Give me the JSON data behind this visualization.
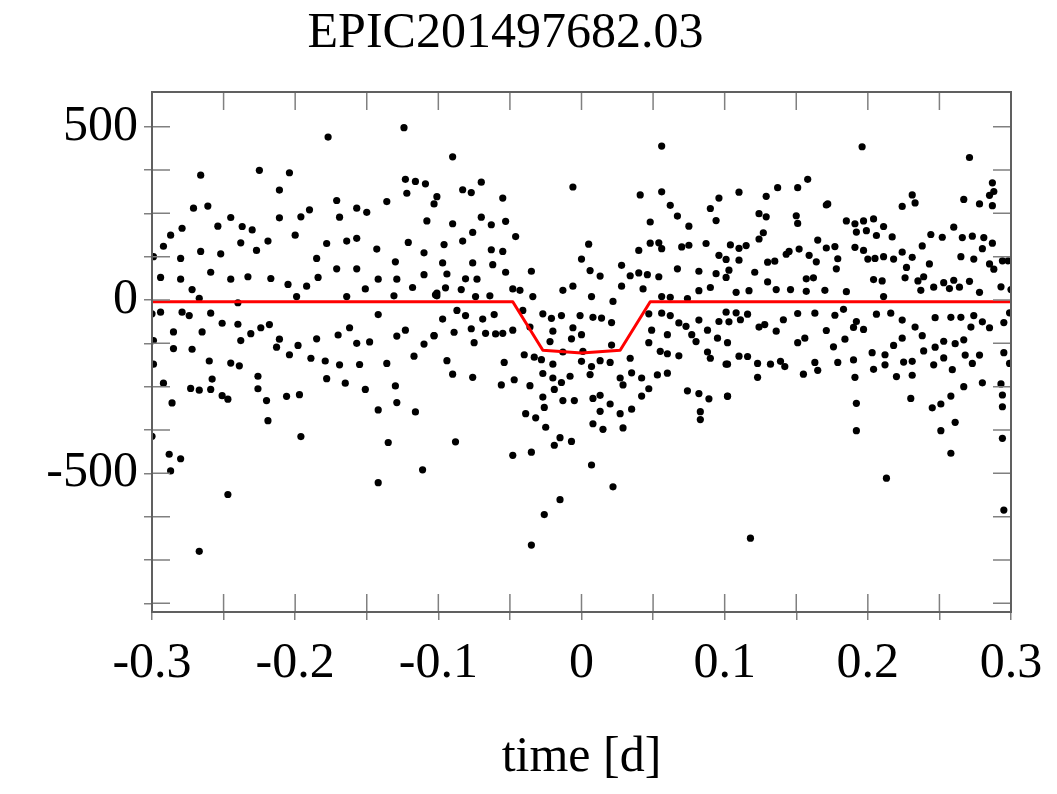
{
  "chart_data": {
    "type": "scatter",
    "title": "EPIC201497682.03",
    "xlabel": "time [d]",
    "xlim": [
      -0.3,
      0.3
    ],
    "ylim": [
      -900,
      600
    ],
    "xticks": [
      -0.3,
      {
        "value": -0.25,
        "label": null
      },
      -0.2,
      {
        "value": -0.15,
        "label": null
      },
      -0.1,
      {
        "value": -0.05,
        "label": null
      },
      0,
      {
        "value": 0.05,
        "label": null
      },
      0.1,
      {
        "value": 0.15,
        "label": null
      },
      0.2,
      {
        "value": 0.25,
        "label": null
      },
      0.3
    ],
    "yticks": [
      {
        "value": -875,
        "label": null
      },
      {
        "value": -750,
        "label": null
      },
      {
        "value": -625,
        "label": null
      },
      -500,
      {
        "value": -375,
        "label": null
      },
      {
        "value": -250,
        "label": null
      },
      {
        "value": -125,
        "label": null
      },
      0,
      {
        "value": 125,
        "label": null
      },
      {
        "value": 250,
        "label": null
      },
      {
        "value": 375,
        "label": null
      },
      500
    ],
    "series": [
      {
        "type": "scatter",
        "color": "#000000",
        "marker": "circle",
        "x": [
          -0.3,
          -0.267,
          -0.124,
          -0.177,
          -0.266,
          -0.225,
          -0.204,
          -0.211,
          -0.299,
          -0.288,
          -0.287,
          -0.28,
          -0.247,
          -0.196,
          -0.142,
          -0.111,
          -0.135,
          -0.142,
          -0.116,
          -0.219,
          -0.292,
          -0.286,
          -0.299,
          -0.299,
          -0.3,
          -0.294,
          -0.292,
          -0.287,
          -0.279,
          -0.271,
          -0.261,
          -0.272,
          -0.28,
          -0.285,
          -0.273,
          -0.267,
          -0.259,
          -0.258,
          -0.26,
          -0.251,
          -0.247,
          -0.245,
          -0.239,
          -0.226,
          -0.22,
          -0.226,
          -0.206,
          -0.197,
          -0.178,
          -0.165,
          -0.151,
          -0.13,
          -0.129,
          -0.254,
          -0.245,
          -0.237,
          -0.23,
          -0.211,
          -0.196,
          -0.19,
          -0.171,
          -0.169,
          -0.157,
          -0.15,
          -0.136,
          -0.123,
          -0.116,
          -0.109,
          -0.122,
          -0.103,
          -0.252,
          -0.238,
          -0.219,
          -0.2,
          -0.178,
          -0.164,
          -0.157,
          -0.143,
          -0.121,
          -0.11,
          -0.266,
          -0.28,
          -0.259,
          -0.245,
          -0.233,
          -0.217,
          -0.205,
          -0.192,
          -0.184,
          -0.171,
          -0.157,
          -0.151,
          -0.142,
          -0.129,
          -0.118,
          -0.11,
          -0.101,
          -0.294,
          -0.279,
          -0.274,
          -0.259,
          -0.251,
          -0.24,
          -0.238,
          -0.231,
          -0.224,
          -0.218,
          -0.211,
          -0.213,
          -0.204,
          -0.198,
          -0.189,
          -0.185,
          -0.179,
          -0.169,
          -0.17,
          -0.162,
          -0.157,
          -0.155,
          -0.148,
          -0.142,
          -0.136,
          -0.129,
          -0.123,
          -0.117,
          -0.11,
          -0.103,
          -0.272,
          -0.265,
          -0.285,
          -0.227,
          -0.185,
          -0.13,
          -0.108,
          -0.267,
          -0.24,
          -0.199,
          -0.164,
          -0.131,
          -0.101,
          -0.09,
          -0.07,
          -0.083,
          -0.101,
          -0.055,
          -0.077,
          -0.07,
          -0.053,
          -0.063,
          -0.046,
          -0.096,
          -0.083,
          -0.076,
          -0.09,
          -0.063,
          -0.055,
          -0.097,
          -0.062,
          -0.053,
          -0.076,
          -0.081,
          -0.073,
          -0.094,
          -0.102,
          -0.095,
          -0.084,
          -0.074,
          -0.064,
          -0.048,
          -0.043,
          -0.087,
          -0.081,
          -0.069,
          -0.061,
          -0.097,
          -0.103,
          -0.089,
          -0.077,
          -0.075,
          -0.067,
          -0.06,
          -0.055,
          -0.048,
          -0.094,
          -0.09,
          -0.076,
          -0.054,
          -0.056,
          -0.047,
          -0.088,
          -0.048,
          -0.035,
          -0.039,
          -0.032,
          -0.025,
          -0.019,
          -0.015,
          -0.007,
          -0.026,
          -0.015,
          -0.035,
          0.007,
          0.022,
          0.008,
          0.015,
          0.029,
          0.02,
          0.027,
          0.013,
          0.008,
          0.035,
          -0.006,
          0.005,
          0.0,
          -0.035,
          0.006,
          0.013,
          0.028,
          -0.006,
          -0.013,
          0.007,
          0.022,
          -0.041,
          -0.034,
          -0.027,
          -0.021,
          -0.014,
          -0.001,
          0.008,
          0.014,
          0.021,
          -0.036,
          -0.02,
          -0.006,
          0.0,
          -0.022,
          -0.007,
          0.021,
          -0.04,
          -0.033,
          -0.028,
          -0.013,
          0.001,
          0.013,
          0.02,
          -0.02,
          0.007,
          0.0,
          0.034,
          -0.027,
          -0.02,
          -0.014,
          -0.008,
          0.006,
          0.027,
          0.029,
          0.035,
          0.042,
          -0.036,
          -0.027,
          -0.019,
          -0.013,
          -0.005,
          0.013,
          -0.026,
          0.047,
          0.042,
          0.056,
          0.041,
          0.056,
          0.062,
          0.067,
          0.075,
          0.048,
          0.09,
          0.096,
          0.094,
          0.04,
          0.048,
          0.056,
          0.054,
          0.07,
          0.075,
          0.087,
          0.096,
          0.034,
          0.04,
          0.046,
          0.054,
          0.067,
          0.082,
          0.094,
          0.101,
          0.028,
          0.043,
          0.056,
          0.062,
          0.074,
          0.082,
          0.09,
          0.047,
          0.056,
          0.062,
          0.068,
          0.082,
          0.096,
          0.049,
          0.06,
          0.073,
          0.077,
          0.088,
          0.095,
          0.047,
          0.055,
          0.06,
          0.068,
          0.08,
          0.088,
          0.09,
          0.102,
          0.053,
          0.06,
          0.074,
          0.082,
          0.089,
          0.102,
          0.083,
          0.083,
          0.102,
          0.196,
          0.271,
          0.158,
          0.151,
          0.137,
          0.11,
          0.129,
          0.287,
          0.288,
          0.285,
          0.231,
          0.233,
          0.224,
          0.267,
          0.278,
          0.287,
          0.171,
          0.172,
          0.124,
          0.129,
          0.15,
          0.151,
          0.185,
          0.191,
          0.197,
          0.204,
          0.211,
          0.26,
          0.124,
          0.127,
          0.165,
          0.192,
          0.199,
          0.206,
          0.217,
          0.244,
          0.252,
          0.266,
          0.273,
          0.281,
          0.287,
          0.104,
          0.115,
          0.11,
          0.145,
          0.152,
          0.159,
          0.171,
          0.177,
          0.191,
          0.197,
          0.211,
          0.224,
          0.231,
          0.238,
          0.265,
          0.274,
          0.28,
          0.294,
          0.298,
          0.101,
          0.11,
          0.13,
          0.135,
          0.143,
          0.164,
          0.179,
          0.2,
          0.205,
          0.218,
          0.227,
          0.243,
          0.285,
          0.288,
          0.103,
          0.121,
          0.13,
          0.157,
          0.162,
          0.178,
          0.204,
          0.21,
          0.226,
          0.235,
          0.239,
          0.253,
          0.26,
          0.271,
          0.293,
          0.3,
          0.108,
          0.117,
          0.136,
          0.146,
          0.157,
          0.17,
          0.185,
          0.211,
          0.237,
          0.246,
          0.257,
          0.264,
          0.278,
          0.101,
          0.108,
          0.116,
          0.103,
          0.111,
          0.124,
          0.128,
          0.136,
          0.141,
          0.151,
          0.163,
          0.171,
          0.177,
          0.183,
          0.192,
          0.19,
          0.197,
          0.206,
          0.216,
          0.224,
          0.233,
          0.247,
          0.258,
          0.265,
          0.272,
          0.274,
          0.28,
          0.285,
          0.295,
          0.299,
          0.116,
          0.101,
          0.11,
          0.123,
          0.132,
          0.139,
          0.142,
          0.151,
          0.156,
          0.155,
          0.163,
          0.165,
          0.176,
          0.179,
          0.184,
          0.19,
          0.191,
          0.204,
          0.203,
          0.212,
          0.212,
          0.218,
          0.22,
          0.224,
          0.225,
          0.231,
          0.231,
          0.238,
          0.239,
          0.246,
          0.247,
          0.253,
          0.253,
          0.259,
          0.261,
          0.267,
          0.268,
          0.273,
          0.278,
          0.295,
          0.299,
          0.102,
          0.123,
          0.192,
          0.192,
          0.23,
          0.245,
          0.251,
          0.258,
          0.261,
          0.251,
          0.258,
          0.267,
          0.28,
          0.293,
          0.294,
          0.294,
          0.294,
          0.213,
          0.295,
          0.118
        ],
        "values": [
          -393,
          -725,
          497,
          470,
          360,
          374,
          367,
          317,
          125,
          -445,
          -493,
          -458,
          -561,
          -394,
          -527,
          -490,
          -411,
          -317,
          -323,
          -348,
          -240,
          -297,
          -185,
          -117,
          -40,
          65,
          155,
          187,
          207,
          265,
          271,
          30,
          60,
          -140,
          -255,
          -260,
          -258,
          -228,
          -176,
          -276,
          -286,
          -182,
          -190,
          -220,
          -290,
          -256,
          -278,
          -273,
          -227,
          -240,
          -258,
          -248,
          -296,
          213,
          238,
          212,
          202,
          237,
          240,
          260,
          287,
          239,
          265,
          253,
          284,
          348,
          342,
          335,
          308,
          277,
          133,
          165,
          170,
          187,
          163,
          170,
          178,
          147,
          166,
          136,
          140,
          120,
          80,
          60,
          67,
          62,
          45,
          40,
          65,
          90,
          90,
          32,
          60,
          60,
          36,
          73,
          20,
          -35,
          -35,
          -45,
          -38,
          -67,
          -70,
          -117,
          -97,
          -80,
          -71,
          -113,
          -136,
          -158,
          -131,
          -168,
          -112,
          -176,
          -187,
          -101,
          -80,
          -125,
          -186,
          -121,
          -42,
          -183,
          -104,
          -87,
          -162,
          -127,
          -103,
          -142,
          -92,
          -92,
          143,
          120,
          110,
          228,
          5,
          -8,
          10,
          10,
          12,
          12,
          413,
          340,
          318,
          298,
          294,
          310,
          239,
          227,
          217,
          183,
          160,
          170,
          195,
          220,
          145,
          140,
          107,
          102,
          80,
          107,
          61,
          60,
          75,
          15,
          35,
          30,
          10,
          12,
          32,
          28,
          -30,
          -45,
          -55,
          -42,
          -55,
          -103,
          -93,
          -83,
          -123,
          -96,
          -98,
          -96,
          -87,
          -175,
          -214,
          -223,
          -180,
          -245,
          -230,
          -409,
          -448,
          -439,
          -328,
          -340,
          -367,
          -419,
          -397,
          -408,
          -619,
          -576,
          -707,
          -476,
          -539,
          -357,
          -373,
          -369,
          -300,
          -328,
          -321,
          -284,
          -315,
          326,
          161,
          118,
          83,
          85,
          69,
          100,
          40,
          28,
          10,
          -4,
          -30,
          10,
          -40,
          -53,
          -45,
          -45,
          -50,
          -52,
          -65,
          -78,
          -90,
          -80,
          -100,
          -120,
          -112,
          -130,
          -158,
          -165,
          -172,
          -150,
          -148,
          -175,
          -180,
          -185,
          -192,
          -177,
          -168,
          -212,
          -225,
          -238,
          -220,
          -215,
          -225,
          -245,
          -210,
          -225,
          -247,
          -280,
          -258,
          -290,
          -290,
          -275,
          -310,
          -256,
          -277,
          444,
          303,
          312,
          273,
          242,
          213,
          225,
          264,
          294,
          229,
          143,
          164,
          148,
          165,
          153,
          158,
          163,
          129,
          70,
          78,
          73,
          67,
          90,
          83,
          76,
          65,
          40,
          32,
          10,
          8,
          4,
          27,
          36,
          -40,
          -38,
          -45,
          -66,
          -58,
          -62,
          -87,
          -100,
          -76,
          -100,
          -87,
          -110,
          -123,
          -148,
          -155,
          -161,
          -120,
          -150,
          -168,
          -185,
          -216,
          -211,
          -262,
          -270,
          -285,
          -277,
          -322,
          -345,
          -123,
          442,
          411,
          348,
          324,
          324,
          311,
          299,
          338,
          313,
          302,
          303,
          280,
          270,
          290,
          277,
          272,
          274,
          277,
          249,
          240,
          243,
          221,
          228,
          220,
          228,
          234,
          212,
          210,
          176,
          194,
          173,
          196,
          200,
          186,
          182,
          189,
          181,
          180,
          184,
          180,
          164,
          159,
          157,
          149,
          140,
          147,
          129,
          150,
          154,
          152,
          143,
          125,
          138,
          123,
          156,
          125,
          118,
          148,
          113,
          113,
          117,
          115,
          109,
          112,
          132,
          110,
          119,
          118,
          120,
          118,
          94,
          104,
          104,
          89,
          86,
          80,
          52,
          61,
          64,
          90,
          59,
          55,
          64,
          55,
          67,
          50,
          57,
          54,
          38,
          30,
          22,
          27,
          30,
          30,
          25,
          28,
          24,
          10,
          28,
          37,
          33,
          37,
          22,
          -35,
          -37,
          -41,
          -63,
          -57,
          -78,
          -71,
          -90,
          -57,
          -39,
          -38,
          -88,
          -44,
          -27,
          -62,
          -79,
          -85,
          -41,
          -38,
          -58,
          -78,
          -51,
          -50,
          -50,
          -78,
          -45,
          -63,
          -80,
          -65,
          -37,
          -163,
          -185,
          -162,
          -183,
          -185,
          -177,
          -192,
          -123,
          -110,
          -214,
          -180,
          -203,
          -135,
          -180,
          -113,
          -173,
          -223,
          -200,
          -152,
          -158,
          -187,
          -131,
          -221,
          -110,
          -179,
          -217,
          -177,
          -103,
          -147,
          -187,
          -136,
          -167,
          -119,
          -201,
          -126,
          -115,
          -159,
          -183,
          -159,
          -152,
          -183,
          -278,
          -223,
          -298,
          -377,
          -284,
          -311,
          -300,
          -277,
          -353,
          -377,
          -442,
          -250,
          -239,
          -242,
          -274,
          -308,
          -399,
          -514,
          -606,
          -687
        ]
      },
      {
        "type": "line",
        "color": "#ff0000",
        "x": [
          -0.3,
          -0.048,
          -0.027,
          0,
          0.027,
          0.048,
          0.3
        ],
        "values": [
          -5,
          -5,
          -145,
          -153,
          -145,
          -5,
          -5
        ]
      }
    ]
  }
}
